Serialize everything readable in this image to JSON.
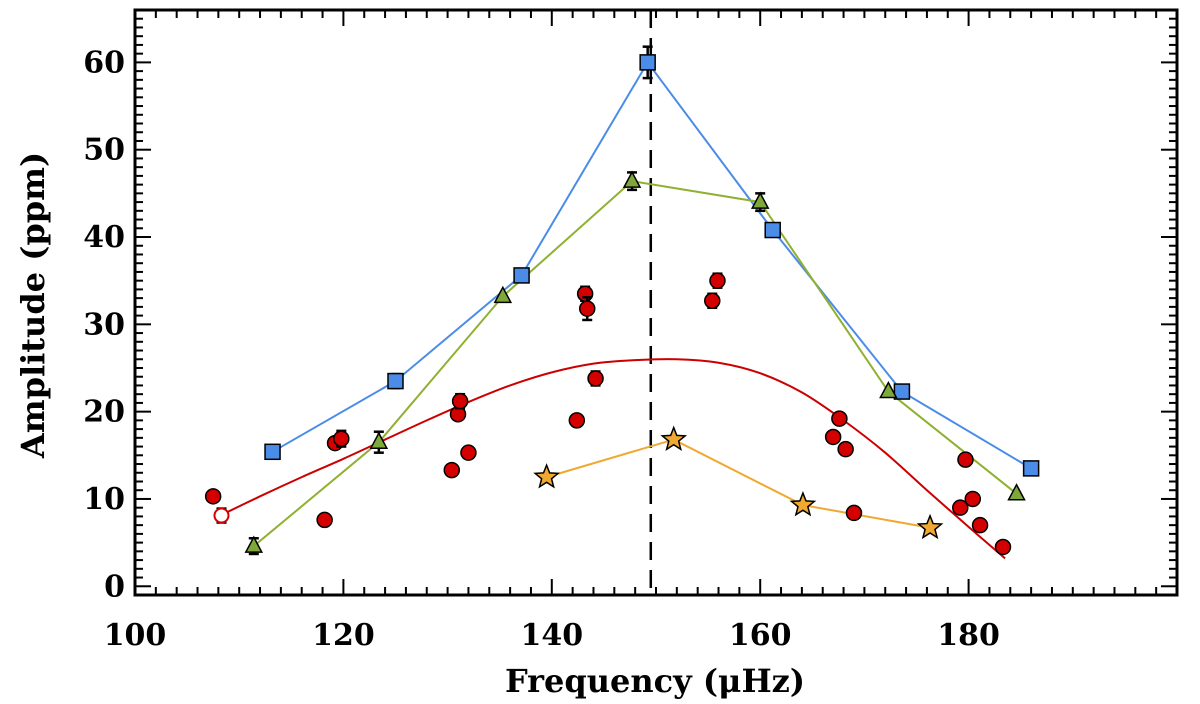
{
  "chart_data": {
    "type": "scatter",
    "title": "",
    "xlabel": "Frequency (μHz)",
    "ylabel": "Amplitude (ppm)",
    "xlim": [
      100,
      200
    ],
    "ylim": [
      -1,
      66
    ],
    "x_ticks": [
      100,
      120,
      140,
      160,
      180
    ],
    "y_ticks": [
      0,
      10,
      20,
      30,
      40,
      50,
      60
    ],
    "grid": false,
    "vertical_reference_line": 149.5,
    "series": [
      {
        "marker": "square",
        "color": "#4a8ce8",
        "line_color": "#4a8ce8",
        "x": [
          113.2,
          125.0,
          137.1,
          149.2,
          161.2,
          173.6,
          186.0
        ],
        "y": [
          15.4,
          23.5,
          35.6,
          60.0,
          40.8,
          22.3,
          13.5
        ],
        "err": [
          0,
          0.8,
          0,
          1.8,
          0,
          0,
          0
        ]
      },
      {
        "marker": "triangle",
        "color": "#7fa83a",
        "line_color": "#8fb030",
        "x": [
          111.4,
          123.4,
          135.3,
          147.7,
          160.0,
          172.3,
          184.6
        ],
        "y": [
          4.6,
          16.5,
          33.2,
          46.4,
          44.0,
          22.3,
          10.6
        ],
        "err": [
          0.9,
          1.2,
          0,
          1.0,
          1.0,
          0,
          0
        ]
      },
      {
        "marker": "circle",
        "color": "#d40000",
        "line_color": "#cc0000",
        "x": [
          107.5,
          118.2,
          119.2,
          119.8,
          130.4,
          131.0,
          131.2,
          132.0,
          142.4,
          143.2,
          143.4,
          144.2,
          155.4,
          155.9,
          167.0,
          167.6,
          168.2,
          169.0,
          179.2,
          179.7,
          180.4,
          181.1,
          183.3
        ],
        "y": [
          10.3,
          7.6,
          16.4,
          16.9,
          13.3,
          19.7,
          21.2,
          15.3,
          19.0,
          33.5,
          31.8,
          23.8,
          32.7,
          35.0,
          17.1,
          19.2,
          15.7,
          8.4,
          9.0,
          14.5,
          10.0,
          7.0,
          4.5
        ],
        "err": [
          0,
          0,
          0,
          0.9,
          0,
          0,
          0.8,
          0,
          0,
          0.8,
          1.3,
          0.8,
          0.8,
          0.8,
          0,
          0,
          0,
          0,
          0,
          0,
          0,
          0,
          0
        ]
      },
      {
        "marker": "open-circle",
        "color": "#d40000",
        "x": [
          108.3
        ],
        "y": [
          8.1
        ],
        "err": [
          0.8
        ]
      },
      {
        "marker": "star",
        "color": "#f0a830",
        "line_color": "#f0a830",
        "x": [
          139.5,
          151.7,
          164.1,
          176.3
        ],
        "y": [
          12.5,
          16.8,
          9.3,
          6.7
        ],
        "err": [
          0,
          0,
          0,
          0
        ]
      }
    ],
    "fit_curve": {
      "color": "#cc0000",
      "x": [
        108,
        112,
        116,
        120,
        124,
        128,
        132,
        136,
        140,
        144,
        148,
        152,
        156,
        160,
        164,
        168,
        172,
        176,
        180,
        183.5
      ],
      "y": [
        8.0,
        10.3,
        12.5,
        14.6,
        16.8,
        19.0,
        21.1,
        23.0,
        24.5,
        25.5,
        25.9,
        26.0,
        25.6,
        24.4,
        22.2,
        19.0,
        15.3,
        11.0,
        6.8,
        3.2
      ]
    }
  }
}
